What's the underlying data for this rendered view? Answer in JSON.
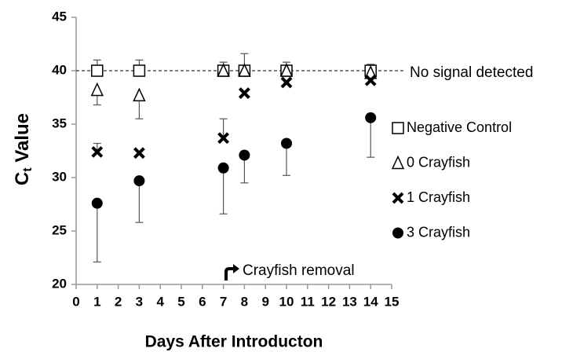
{
  "chart_data": {
    "type": "scatter",
    "y_label": {
      "main": "C",
      "sub": "t",
      "rest": " Value"
    },
    "x_label": "Days After Introducton",
    "xlim": [
      0,
      15
    ],
    "xticks": [
      0,
      1,
      2,
      3,
      4,
      5,
      6,
      7,
      8,
      9,
      10,
      11,
      12,
      13,
      14,
      15
    ],
    "ylim": [
      20,
      45
    ],
    "yticks": [
      20,
      25,
      30,
      35,
      40,
      45
    ],
    "hline": {
      "value": 40,
      "label": "No signal detected"
    },
    "annotation": "Crayfish removal",
    "series": [
      {
        "name": "Negative Control",
        "marker": "square",
        "color": "#000000",
        "error_direction": "up",
        "x": [
          1,
          3,
          7,
          8,
          10,
          14
        ],
        "values": [
          40,
          40,
          40,
          40,
          40,
          40
        ],
        "errors": [
          1,
          1,
          0.8,
          1.6,
          0.8,
          0.6
        ]
      },
      {
        "name": "0 Crayfish",
        "marker": "triangle",
        "color": "#000000",
        "error_direction": "down",
        "x": [
          1,
          3,
          7,
          8,
          10,
          14
        ],
        "values": [
          38.2,
          37.7,
          40,
          40,
          40,
          39.8
        ],
        "errors": [
          1.4,
          2.2,
          null,
          null,
          null,
          null
        ]
      },
      {
        "name": "1 Crayfish",
        "marker": "x",
        "color": "#000000",
        "error_direction": "up",
        "x": [
          1,
          3,
          7,
          8,
          10,
          14
        ],
        "values": [
          32.4,
          32.3,
          33.7,
          37.9,
          38.9,
          39.1
        ],
        "errors": [
          0.8,
          null,
          1.8,
          null,
          null,
          null
        ]
      },
      {
        "name": "3 Crayfish",
        "marker": "circle",
        "color": "#000000",
        "error_direction": "down",
        "x": [
          1,
          3,
          7,
          8,
          10,
          14
        ],
        "values": [
          27.6,
          29.7,
          30.9,
          32.1,
          33.2,
          35.6
        ],
        "errors": [
          5.5,
          3.9,
          4.3,
          2.6,
          3.0,
          3.7
        ]
      }
    ]
  }
}
